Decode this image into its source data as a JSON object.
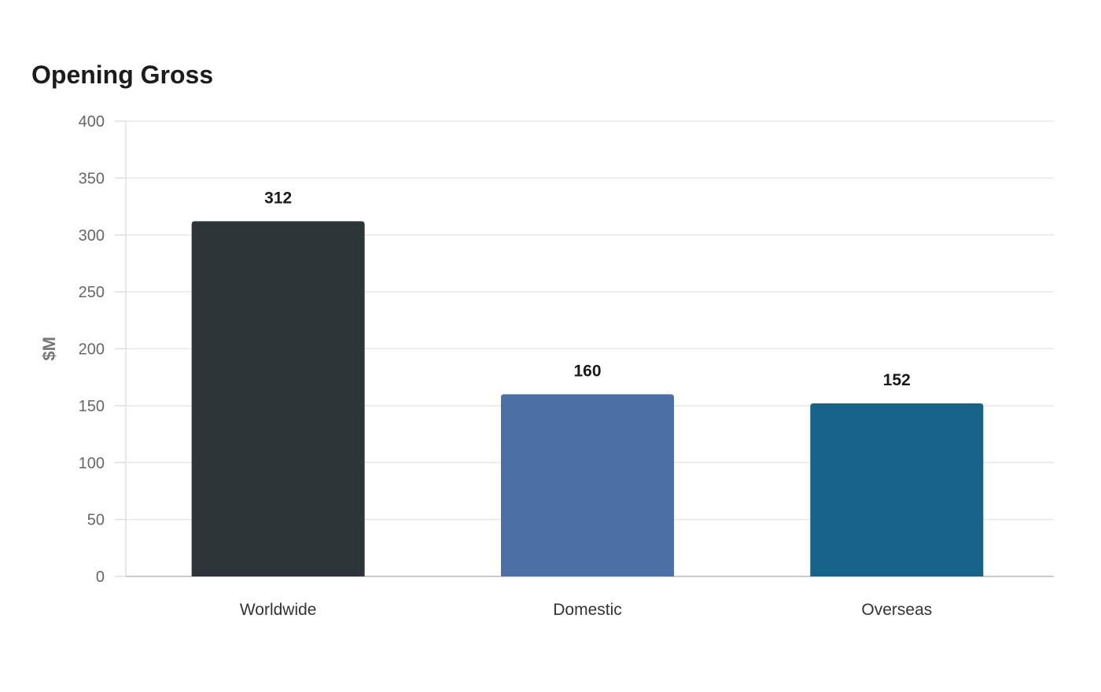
{
  "chart_data": {
    "type": "bar",
    "title": "Opening Gross",
    "xlabel": "",
    "ylabel": "$M",
    "categories": [
      "Worldwide",
      "Domestic",
      "Overseas"
    ],
    "values": [
      312,
      160,
      152
    ],
    "colors": [
      "#2e3538",
      "#4c70a5",
      "#176289"
    ],
    "ylim": [
      0,
      400
    ],
    "yticks": [
      0,
      50,
      100,
      150,
      200,
      250,
      300,
      350,
      400
    ],
    "grid": true,
    "legend": "none"
  }
}
